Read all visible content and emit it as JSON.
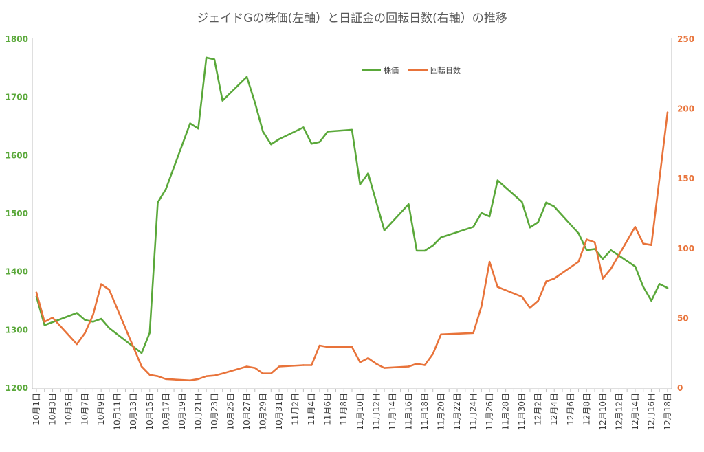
{
  "chart_data": {
    "type": "line",
    "title": "ジェイドGの株価(左軸）と日証金の回転日数(右軸）の推移",
    "xlabel": "",
    "ylabel_left": "",
    "ylabel_right": "",
    "ylim_left": [
      1200,
      1800
    ],
    "ylim_right": [
      0,
      250
    ],
    "y_ticks_left": [
      1200,
      1300,
      1400,
      1500,
      1600,
      1700,
      1800
    ],
    "y_ticks_right": [
      0,
      50,
      100,
      150,
      200,
      250
    ],
    "x_tick_labels": [
      "10月1日",
      "10月3日",
      "10月5日",
      "10月7日",
      "10月9日",
      "10月11日",
      "10月13日",
      "10月15日",
      "10月17日",
      "10月19日",
      "10月21日",
      "10月23日",
      "10月25日",
      "10月27日",
      "10月29日",
      "10月31日",
      "11月2日",
      "11月4日",
      "11月6日",
      "11月8日",
      "11月10日",
      "11月12日",
      "11月14日",
      "11月16日",
      "11月18日",
      "11月20日",
      "11月22日",
      "11月24日",
      "11月26日",
      "11月28日",
      "11月30日",
      "12月2日",
      "12月4日",
      "12月6日",
      "12月8日",
      "12月10日",
      "12月12日",
      "12月14日",
      "12月16日",
      "12月18日"
    ],
    "x_day_index": [
      0,
      2,
      4,
      6,
      8,
      10,
      12,
      14,
      16,
      18,
      20,
      22,
      24,
      26,
      28,
      30,
      32,
      34,
      36,
      38,
      40,
      42,
      44,
      46,
      48,
      50,
      52,
      54,
      56,
      58,
      60,
      62,
      64,
      66,
      68,
      70,
      72,
      74,
      76,
      78
    ],
    "grid": false,
    "legend": "top-center",
    "series": [
      {
        "name": "株価",
        "axis": "left",
        "color": "#5aa83a",
        "x": [
          0,
          1,
          5,
          6,
          7,
          8,
          9,
          13,
          14,
          15,
          16,
          19,
          20,
          21,
          22,
          23,
          26,
          27,
          28,
          29,
          30,
          33,
          34,
          35,
          36,
          39,
          40,
          41,
          43,
          46,
          47,
          48,
          49,
          50,
          54,
          55,
          56,
          57,
          60,
          61,
          62,
          63,
          64,
          67,
          68,
          69,
          70,
          71,
          74,
          75,
          76,
          77,
          78
        ],
        "values": [
          1356,
          1307,
          1328,
          1316,
          1313,
          1318,
          1302,
          1259,
          1294,
          1518,
          1541,
          1654,
          1645,
          1767,
          1764,
          1693,
          1734,
          1690,
          1640,
          1618,
          1627,
          1647,
          1619,
          1622,
          1640,
          1643,
          1549,
          1568,
          1470,
          1515,
          1435,
          1435,
          1444,
          1458,
          1476,
          1500,
          1494,
          1556,
          1519,
          1475,
          1484,
          1518,
          1511,
          1465,
          1436,
          1438,
          1421,
          1436,
          1408,
          1373,
          1349,
          1378,
          1371
        ]
      },
      {
        "name": "回転日数",
        "axis": "right",
        "color": "#e8733a",
        "x": [
          0,
          1,
          2,
          5,
          6,
          7,
          8,
          9,
          13,
          14,
          15,
          16,
          19,
          20,
          21,
          22,
          23,
          26,
          27,
          28,
          29,
          30,
          33,
          34,
          35,
          36,
          39,
          40,
          41,
          42,
          43,
          46,
          47,
          48,
          49,
          50,
          54,
          55,
          56,
          57,
          60,
          61,
          62,
          63,
          64,
          67,
          68,
          69,
          70,
          71,
          74,
          75,
          76,
          78
        ],
        "values": [
          68,
          47,
          50,
          31,
          39,
          52,
          74,
          70,
          15,
          9,
          8,
          6,
          5,
          6,
          8,
          8.5,
          10,
          15,
          14,
          10,
          10,
          15,
          16,
          16,
          30,
          29,
          29,
          18,
          21,
          17,
          14,
          15,
          17,
          16,
          24,
          38,
          39,
          58,
          90,
          72,
          65,
          57,
          62,
          76,
          78,
          90,
          106,
          104,
          78,
          85,
          115,
          103,
          102,
          197
        ]
      }
    ]
  }
}
